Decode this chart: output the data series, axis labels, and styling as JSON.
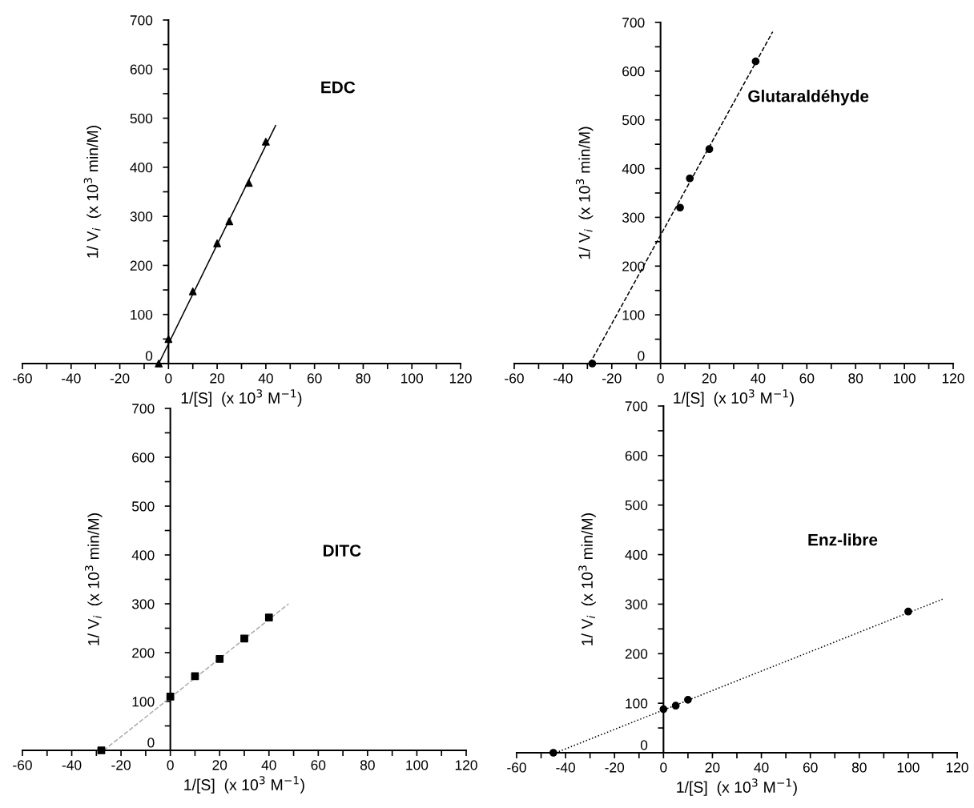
{
  "chart_data": [
    {
      "type": "scatter",
      "title": "EDC",
      "xlabel": "1/[S]  (x 10$^{3}$ M$^{−1}$)",
      "ylabel": "1/ V$_{i}$  (x 10$^{3}$ min/M)",
      "marker": "triangle",
      "grid": false,
      "legend": false,
      "xlim": [
        -60,
        120
      ],
      "ylim": [
        0,
        700
      ],
      "xticks": [
        -60,
        {
          "value": -50,
          "label": null
        },
        -40,
        {
          "value": -30,
          "label": null
        },
        -20,
        {
          "value": -10,
          "label": null
        },
        0,
        {
          "value": 10,
          "label": null
        },
        20,
        {
          "value": 30,
          "label": null
        },
        40,
        {
          "value": 50,
          "label": null
        },
        60,
        {
          "value": 70,
          "label": null
        },
        80,
        {
          "value": 90,
          "label": null
        },
        100,
        {
          "value": 110,
          "label": null
        },
        120
      ],
      "yticks": [
        0,
        {
          "value": 50,
          "label": null
        },
        100,
        {
          "value": 150,
          "label": null
        },
        200,
        {
          "value": 250,
          "label": null
        },
        300,
        {
          "value": 350,
          "label": null
        },
        400,
        {
          "value": 450,
          "label": null
        },
        500,
        {
          "value": 550,
          "label": null
        },
        600,
        {
          "value": 650,
          "label": null
        },
        700
      ],
      "series": [
        {
          "color": "#000000",
          "x": [
            -4,
            0,
            10,
            20,
            25,
            33,
            40
          ],
          "values": [
            0,
            50,
            147,
            245,
            290,
            368,
            452
          ]
        },
        {
          "type": "line",
          "color": "#000000",
          "line_style": "solid",
          "marker": "none",
          "x": [
            -4,
            44
          ],
          "values": [
            0,
            485
          ]
        }
      ]
    },
    {
      "type": "scatter",
      "title": "Glutaraldéhyde",
      "xlabel": "1/[S]  (x 10$^{3}$ M$^{−1}$)",
      "ylabel": "1/ V$_{i}$  (x 10$^{3}$ min/M)",
      "marker": "circle",
      "grid": false,
      "legend": false,
      "xlim": [
        -60,
        120
      ],
      "ylim": [
        0,
        700
      ],
      "xticks": [
        -60,
        {
          "value": -50,
          "label": null
        },
        -40,
        {
          "value": -30,
          "label": null
        },
        -20,
        {
          "value": -10,
          "label": null
        },
        0,
        {
          "value": 10,
          "label": null
        },
        20,
        {
          "value": 30,
          "label": null
        },
        40,
        {
          "value": 50,
          "label": null
        },
        60,
        {
          "value": 70,
          "label": null
        },
        80,
        {
          "value": 90,
          "label": null
        },
        100,
        {
          "value": 110,
          "label": null
        },
        120
      ],
      "yticks": [
        0,
        {
          "value": 50,
          "label": null
        },
        100,
        {
          "value": 150,
          "label": null
        },
        200,
        {
          "value": 250,
          "label": null
        },
        300,
        {
          "value": 350,
          "label": null
        },
        400,
        {
          "value": 450,
          "label": null
        },
        500,
        {
          "value": 550,
          "label": null
        },
        600,
        {
          "value": 650,
          "label": null
        },
        700
      ],
      "series": [
        {
          "color": "#000000",
          "x": [
            -28,
            8,
            12,
            20,
            39
          ],
          "values": [
            0,
            320,
            380,
            440,
            620
          ]
        },
        {
          "type": "line",
          "color": "#000000",
          "line_style": "dashed",
          "marker": "none",
          "x": [
            -29,
            46
          ],
          "values": [
            0,
            681
          ]
        }
      ]
    },
    {
      "type": "scatter",
      "title": "DITC",
      "xlabel": "1/[S]  (x 10$^{3}$ M$^{−1}$)",
      "ylabel": "1/ V$_{i}$  (x 10$^{3}$ min/M)",
      "marker": "square",
      "grid": false,
      "legend": false,
      "xlim": [
        -60,
        120
      ],
      "ylim": [
        0,
        700
      ],
      "xticks": [
        -60,
        {
          "value": -50,
          "label": null
        },
        -40,
        {
          "value": -30,
          "label": null
        },
        -20,
        {
          "value": -10,
          "label": null
        },
        0,
        {
          "value": 10,
          "label": null
        },
        20,
        {
          "value": 30,
          "label": null
        },
        40,
        {
          "value": 50,
          "label": null
        },
        60,
        {
          "value": 70,
          "label": null
        },
        80,
        {
          "value": 90,
          "label": null
        },
        100,
        {
          "value": 110,
          "label": null
        },
        120
      ],
      "yticks": [
        0,
        {
          "value": 50,
          "label": null
        },
        100,
        {
          "value": 150,
          "label": null
        },
        200,
        {
          "value": 250,
          "label": null
        },
        300,
        {
          "value": 350,
          "label": null
        },
        400,
        {
          "value": 450,
          "label": null
        },
        500,
        {
          "value": 550,
          "label": null
        },
        600,
        {
          "value": 650,
          "label": null
        },
        700
      ],
      "series": [
        {
          "color": "#000000",
          "x": [
            -28,
            0,
            10,
            20,
            30,
            40
          ],
          "values": [
            0,
            110,
            152,
            187,
            229,
            272
          ]
        },
        {
          "type": "line",
          "color": "#aaaaaa",
          "line_style": "dashed",
          "marker": "none",
          "x": [
            -27,
            48
          ],
          "values": [
            0,
            300
          ]
        }
      ]
    },
    {
      "type": "scatter",
      "title": "Enz-libre",
      "xlabel": "1/[S]  (x 10$^{3}$ M$^{−1}$)",
      "ylabel": "1/ V$_{i}$  (x 10$^{3}$ min/M)",
      "marker": "circle",
      "grid": false,
      "legend": false,
      "xlim": [
        -60,
        120
      ],
      "ylim": [
        0,
        700
      ],
      "xticks": [
        -60,
        {
          "value": -50,
          "label": null
        },
        -40,
        {
          "value": -30,
          "label": null
        },
        -20,
        {
          "value": -10,
          "label": null
        },
        0,
        {
          "value": 10,
          "label": null
        },
        20,
        {
          "value": 30,
          "label": null
        },
        40,
        {
          "value": 50,
          "label": null
        },
        60,
        {
          "value": 70,
          "label": null
        },
        80,
        {
          "value": 90,
          "label": null
        },
        100,
        {
          "value": 110,
          "label": null
        },
        120
      ],
      "yticks": [
        0,
        {
          "value": 50,
          "label": null
        },
        100,
        {
          "value": 150,
          "label": null
        },
        200,
        {
          "value": 250,
          "label": null
        },
        300,
        {
          "value": 350,
          "label": null
        },
        400,
        {
          "value": 450,
          "label": null
        },
        500,
        {
          "value": 550,
          "label": null
        },
        600,
        {
          "value": 650,
          "label": null
        },
        700
      ],
      "series": [
        {
          "color": "#000000",
          "x": [
            -45,
            0,
            5,
            10,
            100
          ],
          "values": [
            0,
            88,
            95,
            107,
            285
          ]
        },
        {
          "type": "line",
          "color": "#000000",
          "line_style": "dotted",
          "marker": "none",
          "x": [
            -44,
            114
          ],
          "values": [
            0,
            310
          ]
        }
      ]
    }
  ]
}
